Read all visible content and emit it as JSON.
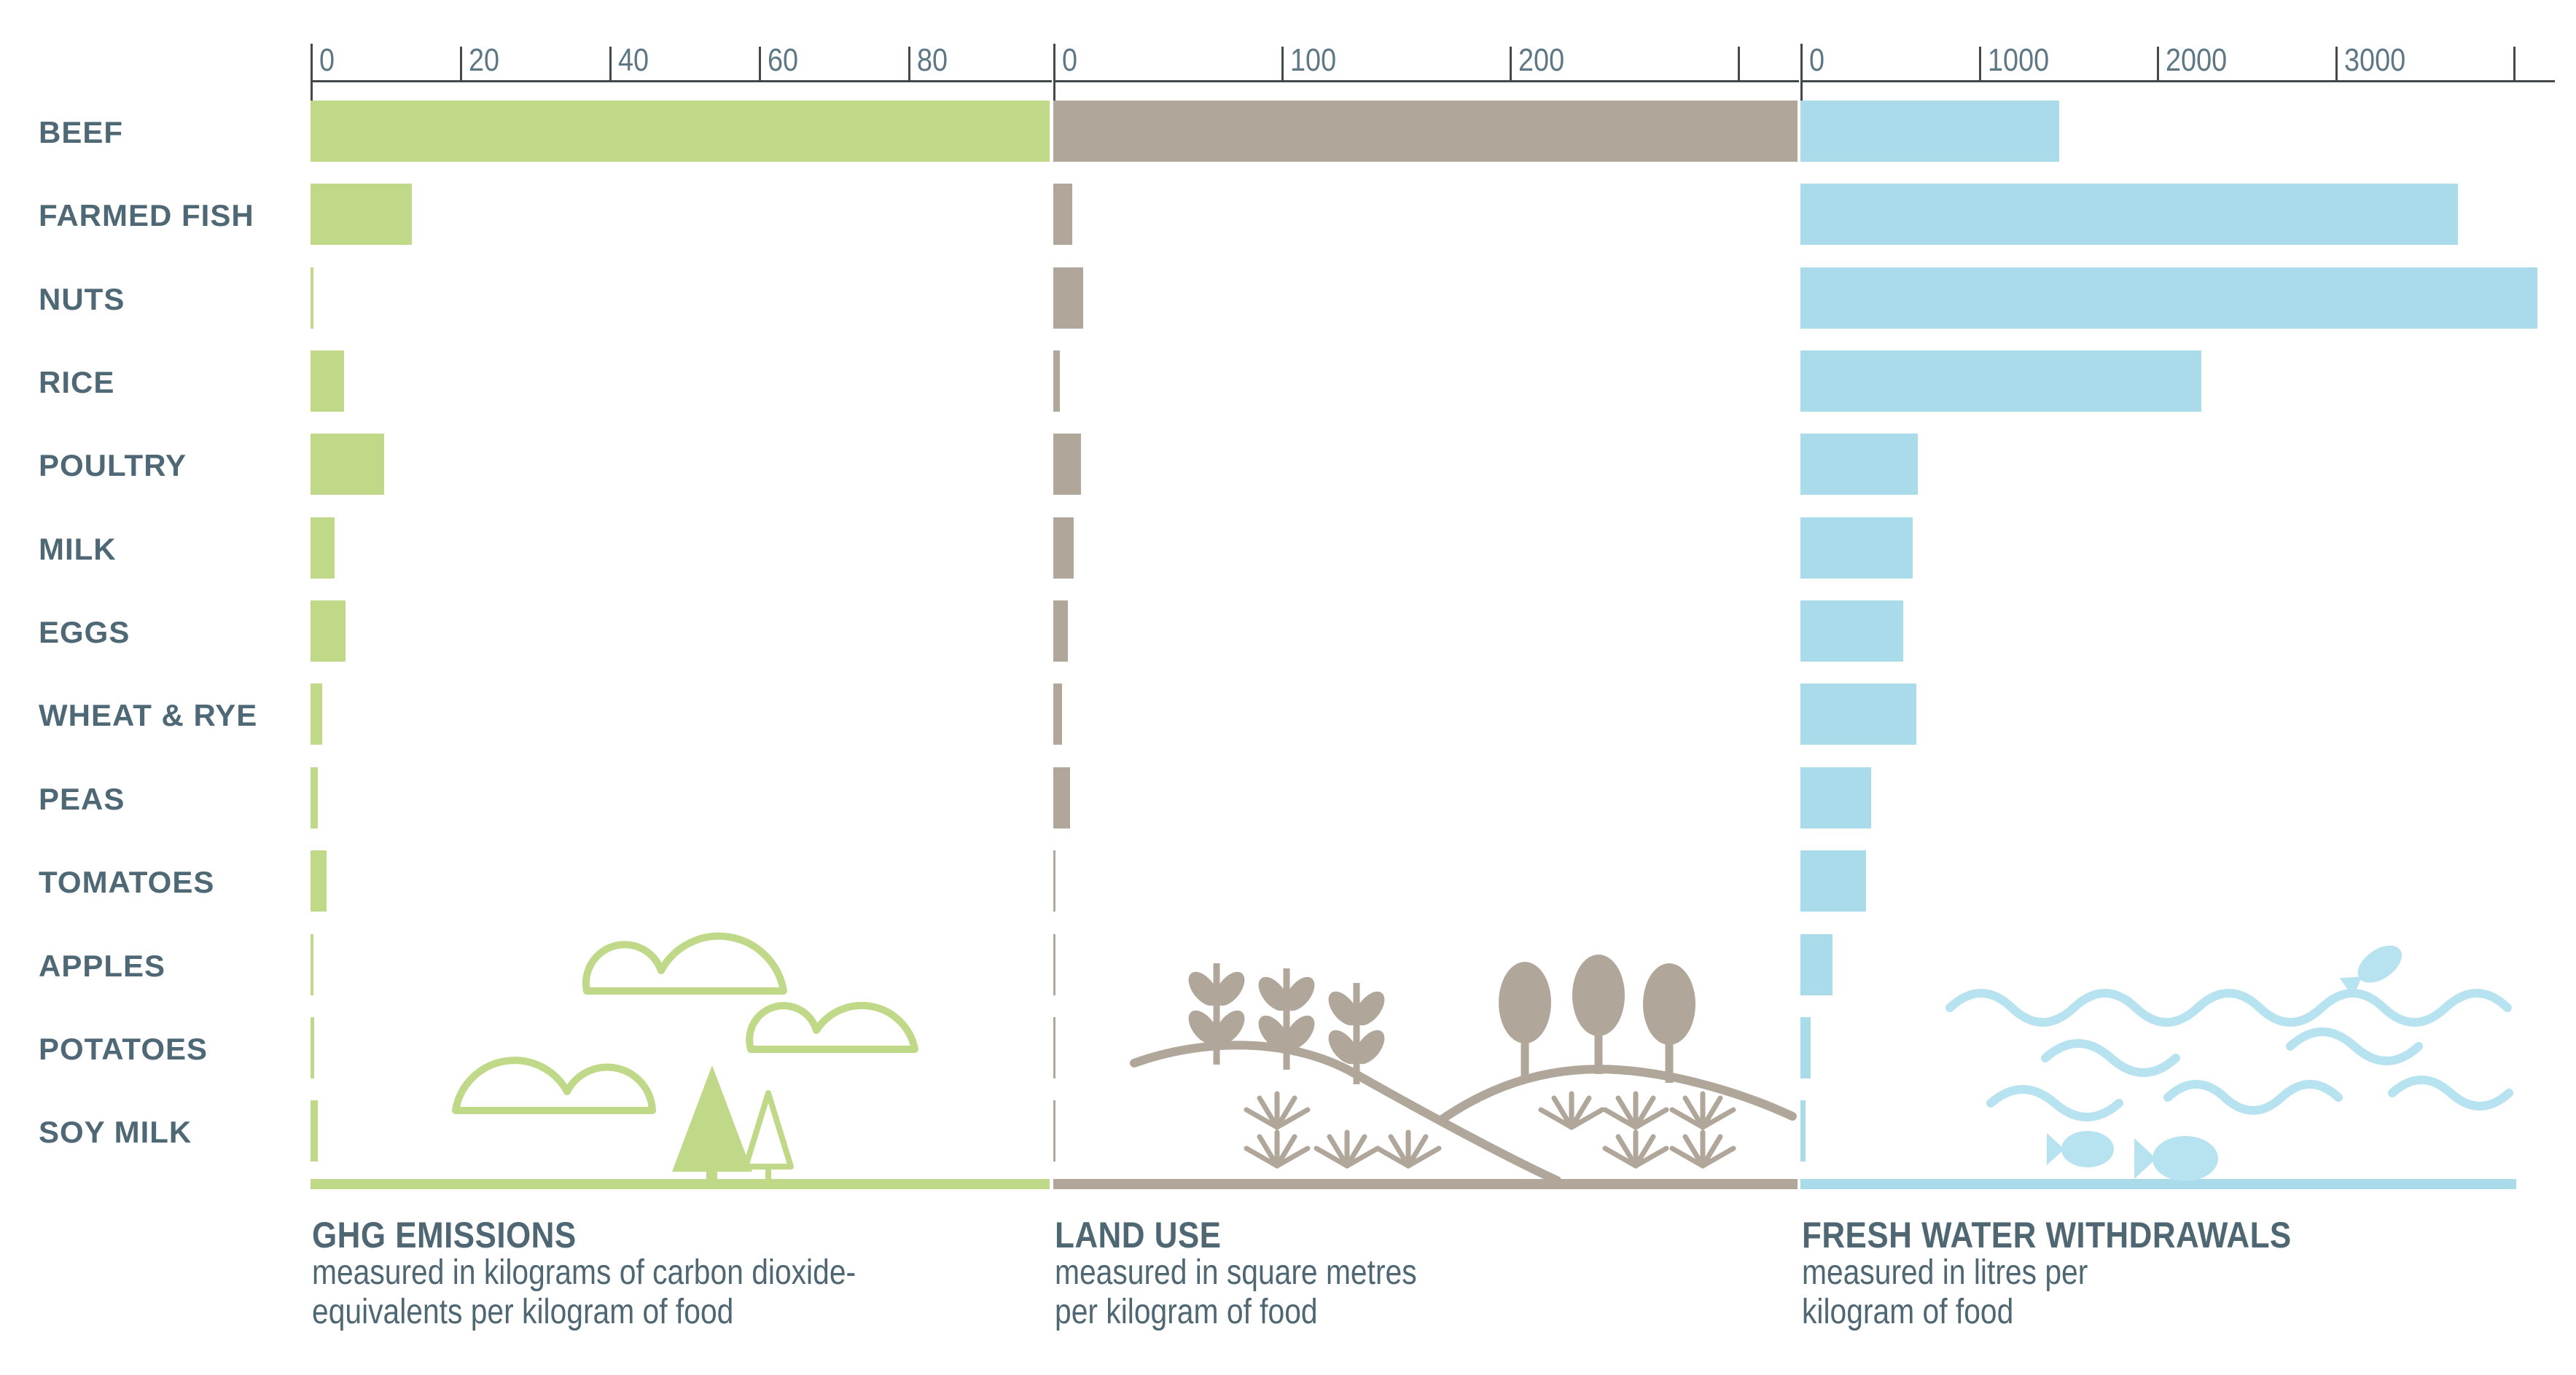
{
  "colors": {
    "ghg_green": "#bfd989",
    "land_tan": "#b0a69a",
    "water_blue": "#aadbea",
    "illustration_blue": "#b7e2ef",
    "label_text": "#4e6975",
    "tick_text": "#5d7884",
    "axis_line": "#43484b",
    "footer_text": "#4f6773"
  },
  "rows": [
    "BEEF",
    "FARMED FISH",
    "NUTS",
    "RICE",
    "POULTRY",
    "MILK",
    "EGGS",
    "WHEAT & RYE",
    "PEAS",
    "TOMATOES",
    "APPLES",
    "POTATOES",
    "SOY MILK"
  ],
  "panels": [
    {
      "title": "GHG EMISSIONS",
      "subtitle_lines": [
        "measured in kilograms of carbon dioxide-",
        "equivalents per kilogram of food"
      ]
    },
    {
      "title": "LAND USE",
      "subtitle_lines": [
        "measured in square metres",
        "per kilogram of food"
      ]
    },
    {
      "title": "FRESH WATER WITHDRAWALS",
      "subtitle_lines": [
        "measured in litres per",
        "kilogram of food"
      ]
    }
  ],
  "chart_data": {
    "type": "bar",
    "orientation": "horizontal",
    "categories": [
      "BEEF",
      "FARMED FISH",
      "NUTS",
      "RICE",
      "POULTRY",
      "MILK",
      "EGGS",
      "WHEAT & RYE",
      "PEAS",
      "TOMATOES",
      "APPLES",
      "POTATOES",
      "SOY MILK"
    ],
    "series": [
      {
        "name": "GHG emissions",
        "unit": "kg CO2-equivalents per kg of food",
        "values": [
          99.5,
          13.6,
          0.4,
          4.5,
          9.9,
          3.2,
          4.7,
          1.6,
          1.0,
          2.1,
          0.4,
          0.5,
          1.0
        ],
        "axis_ticks": [
          0,
          20,
          40,
          60,
          80
        ],
        "axis_max": 99,
        "grid": false,
        "legend": "none"
      },
      {
        "name": "Land use",
        "unit": "square metres per kg of food",
        "values": [
          326.2,
          8.4,
          13.0,
          2.8,
          12.2,
          9.0,
          6.3,
          3.9,
          7.5,
          0.8,
          0.6,
          0.9,
          0.7
        ],
        "axis_ticks": [
          0,
          100,
          200,
          300
        ],
        "axis_max": 326,
        "grid": false,
        "legend": "none"
      },
      {
        "name": "Fresh water withdrawals",
        "unit": "litres per kg of food",
        "values": [
          1451,
          3691,
          4134,
          2248,
          660,
          628,
          578,
          649,
          397,
          370,
          180,
          59,
          28
        ],
        "axis_ticks": [
          0,
          1000,
          2000,
          3000,
          4000
        ],
        "axis_max": 4350,
        "grid": false,
        "legend": "none"
      }
    ]
  }
}
